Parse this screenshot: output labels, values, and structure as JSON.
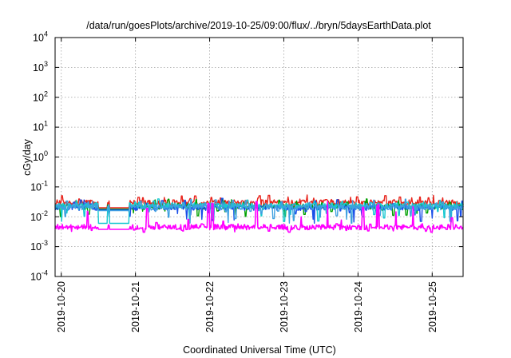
{
  "chart_data": {
    "type": "line",
    "title": "/data/run/goesPlots/archive/2019-10-25/09:00/flux/../bryn/5daysEarthData.plot",
    "xlabel": "Coordinated Universal Time (UTC)",
    "ylabel": "cGy/day",
    "yscale": "log",
    "ylim": [
      0.0001,
      10000
    ],
    "y_ticks": [
      {
        "value": 0.0001,
        "base": "10",
        "exp": "-4"
      },
      {
        "value": 0.001,
        "base": "10",
        "exp": "-3"
      },
      {
        "value": 0.01,
        "base": "10",
        "exp": "-2"
      },
      {
        "value": 0.1,
        "base": "10",
        "exp": "-1"
      },
      {
        "value": 1,
        "base": "10",
        "exp": "0"
      },
      {
        "value": 10,
        "base": "10",
        "exp": "1"
      },
      {
        "value": 100,
        "base": "10",
        "exp": "2"
      },
      {
        "value": 1000,
        "base": "10",
        "exp": "3"
      },
      {
        "value": 10000,
        "base": "10",
        "exp": "4"
      }
    ],
    "xlim": [
      "2019-10-19 22:00",
      "2019-10-25 10:00"
    ],
    "x_ticks": [
      "2019-10-20",
      "2019-10-21",
      "2019-10-22",
      "2019-10-23",
      "2019-10-24",
      "2019-10-25"
    ],
    "grid": true,
    "gaps": [
      [
        "2019-10-20 12:00",
        "2019-10-20 15:00"
      ],
      [
        "2019-10-20 15:30",
        "2019-10-20 22:00"
      ]
    ],
    "series": [
      {
        "color": "#e8241c",
        "level": 0.03,
        "low": 0.02,
        "spike_max": 0.055,
        "dip_min": 0.02
      },
      {
        "color": "#00a000",
        "level": 0.022,
        "low": 0.018,
        "spike_max": 0.04,
        "dip_min": 0.01
      },
      {
        "color": "#1a4fe8",
        "level": 0.02,
        "low": 0.017,
        "spike_max": 0.045,
        "dip_min": 0.006
      },
      {
        "color": "#17c8d0",
        "level": 0.024,
        "low": 0.006,
        "spike_max": 0.04,
        "dip_min": 0.006
      },
      {
        "color": "#3fa0e0",
        "level": 0.021,
        "low": 0.016,
        "spike_max": 0.04,
        "dip_min": 0.006
      },
      {
        "color": "#ff00ff",
        "level": 0.0045,
        "low": 0.0038,
        "spike_max": 0.04,
        "dip_min": 0.003
      }
    ]
  }
}
